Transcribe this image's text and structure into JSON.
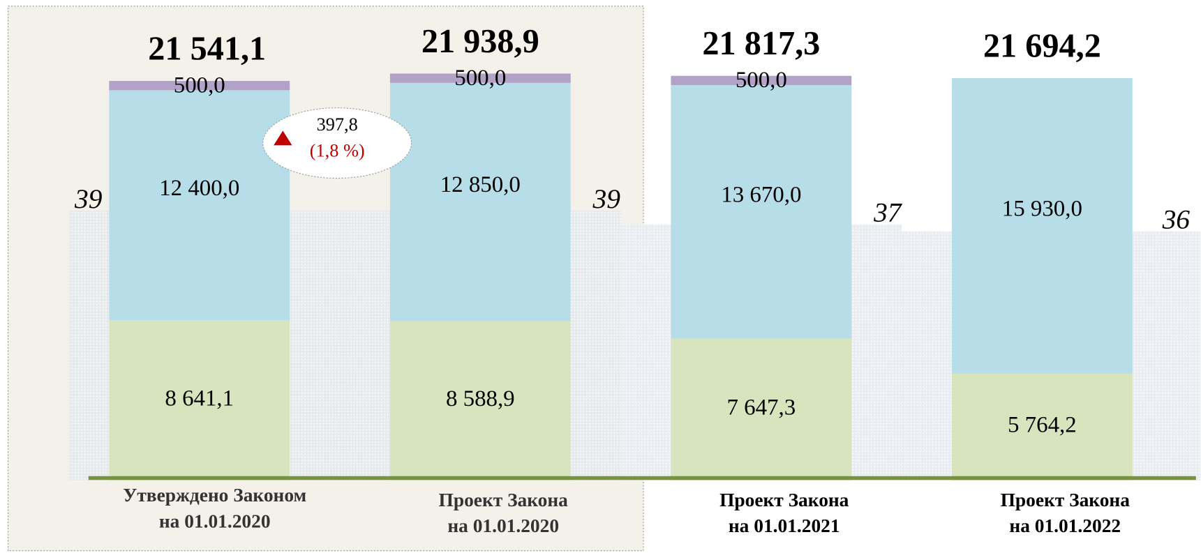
{
  "chart_data": {
    "type": "stacked_bar",
    "categories": [
      [
        "Утверждено Законом",
        "на  01.01.2020"
      ],
      [
        "Проект Закона",
        "на  01.01.2020"
      ],
      [
        "Проект Закона",
        "на  01.01.2021"
      ],
      [
        "Проект Закона",
        "на  01.01.2022"
      ]
    ],
    "series": [
      {
        "color": "#d7e4bd",
        "values": [
          8641.1,
          8588.9,
          7647.3,
          5764.2
        ],
        "value_labels": [
          "8 641,1",
          "8 588,9",
          "7 647,3",
          "5 764,2"
        ]
      },
      {
        "color": "#b7dde8",
        "values": [
          12400.0,
          12850.0,
          13670.0,
          15930.0
        ],
        "value_labels": [
          "12 400,0",
          "12 850,0",
          "13 670,0",
          "15 930,0"
        ]
      },
      {
        "color": "#b3a2c7",
        "values": [
          500.0,
          500.0,
          500.0,
          null
        ],
        "value_labels": [
          "500,0",
          "500,0",
          "500,0",
          null
        ]
      },
      {
        "color": "#dde3ea",
        "axis": "y2",
        "values": [
          39,
          39,
          37,
          36
        ]
      }
    ],
    "totals": {
      "values": [
        21541.1,
        21938.9,
        21817.3,
        21694.2
      ],
      "value_labels": [
        "21 541,1",
        "21 938,9",
        "21 817,3",
        "21 694,2"
      ]
    },
    "annotation": {
      "text": "397,8",
      "subtext": "(1,8 %)"
    },
    "ylim": [
      0,
      25000
    ],
    "y2lim": [
      0,
      67
    ]
  }
}
